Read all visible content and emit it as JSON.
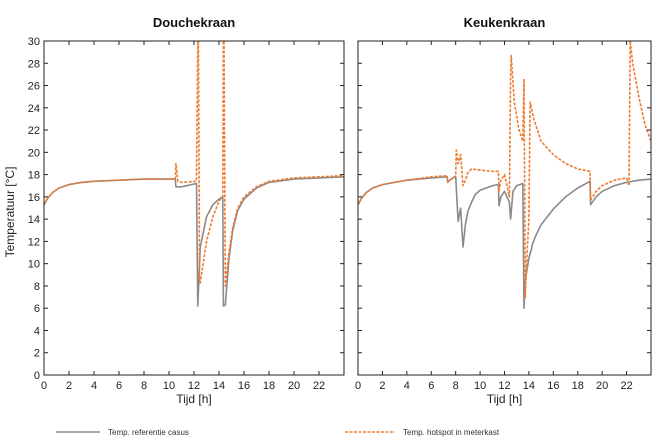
{
  "chart_data": {
    "type": "line",
    "ylabel": "Temperatuur [°C]",
    "colors": {
      "reference": "#8a8a8a",
      "hotspot": "#f07a30",
      "axis": "#222222"
    },
    "legend": {
      "placement": "bottom",
      "entries": [
        {
          "label": "Temp. referentie casus",
          "style": "solid",
          "color": "#8a8a8a"
        },
        {
          "label": "Temp. hotspot in meterkast",
          "style": "dashed",
          "color": "#f07a30"
        }
      ]
    },
    "panels": [
      {
        "title": "Douchekraan",
        "xlabel": "Tijd [h]",
        "xlim": [
          0,
          24
        ],
        "ylim": [
          0,
          30
        ],
        "xticks": [
          0,
          2,
          4,
          6,
          8,
          10,
          12,
          14,
          16,
          18,
          20,
          22
        ],
        "yticks": [
          0,
          2,
          4,
          6,
          8,
          10,
          12,
          14,
          16,
          18,
          20,
          22,
          24,
          26,
          28,
          30
        ],
        "series": [
          {
            "key": "reference",
            "x": [
              0,
              0.3,
              0.7,
              1.2,
              2,
              3,
              4,
              6,
              8,
              10.5,
              10.55,
              11,
              12.2,
              12.3,
              12.5,
              13,
              13.5,
              14,
              14.3,
              14.35,
              14.5,
              14.8,
              15.1,
              15.5,
              16,
              17,
              18,
              20,
              22,
              24
            ],
            "y": [
              15.3,
              15.9,
              16.4,
              16.8,
              17.1,
              17.3,
              17.4,
              17.5,
              17.6,
              17.6,
              16.9,
              16.9,
              17.2,
              6.2,
              11.5,
              14.2,
              15.3,
              15.8,
              16.0,
              6.2,
              6.3,
              10.5,
              13.0,
              14.8,
              15.8,
              16.8,
              17.3,
              17.6,
              17.7,
              17.8
            ]
          },
          {
            "key": "hotspot",
            "x": [
              0,
              0.3,
              0.7,
              1.2,
              2,
              3,
              4,
              6,
              8,
              10.5,
              10.55,
              10.7,
              11,
              12.2,
              12.3,
              12.35,
              12.45,
              12.5,
              13,
              13.5,
              14,
              14.3,
              14.35,
              14.4,
              14.5,
              14.8,
              15.1,
              15.5,
              16,
              17,
              18,
              20,
              22,
              24
            ],
            "y": [
              15.3,
              15.9,
              16.4,
              16.8,
              17.1,
              17.3,
              17.4,
              17.5,
              17.6,
              17.6,
              19.0,
              17.4,
              17.3,
              17.4,
              30,
              30,
              8.2,
              8.3,
              12.0,
              14.2,
              15.6,
              16.1,
              30,
              30,
              8.0,
              11.0,
              13.3,
              15.0,
              16.0,
              16.9,
              17.4,
              17.7,
              17.8,
              17.9
            ]
          }
        ]
      },
      {
        "title": "Keukenkraan",
        "xlabel": "Tijd [h]",
        "xlim": [
          0,
          24
        ],
        "ylim": [
          0,
          30
        ],
        "xticks": [
          0,
          2,
          4,
          6,
          8,
          10,
          12,
          14,
          16,
          18,
          20,
          22
        ],
        "yticks": [
          0,
          2,
          4,
          6,
          8,
          10,
          12,
          14,
          16,
          18,
          20,
          22,
          24,
          26,
          28,
          30
        ],
        "series": [
          {
            "key": "reference",
            "x": [
              0,
              0.3,
              0.7,
              1.2,
              2,
              3,
              4,
              6,
              7.3,
              7.35,
              7.5,
              7.8,
              8.0,
              8.2,
              8.4,
              8.6,
              8.8,
              9.0,
              9.3,
              9.6,
              10,
              11,
              11.5,
              11.55,
              11.7,
              12.0,
              12.4,
              12.5,
              12.7,
              13.0,
              13.5,
              13.6,
              13.7,
              14.0,
              14.2,
              14.3,
              14.6,
              15,
              16,
              17,
              18,
              19,
              19.05,
              19.5,
              20,
              21,
              22,
              23,
              24
            ],
            "y": [
              15.3,
              15.9,
              16.4,
              16.8,
              17.1,
              17.3,
              17.5,
              17.7,
              17.8,
              17.3,
              17.5,
              17.7,
              17.8,
              13.8,
              15.0,
              11.5,
              13.5,
              14.7,
              15.5,
              16.2,
              16.6,
              17.0,
              17.1,
              15.2,
              16.0,
              16.5,
              15.5,
              14.0,
              16.5,
              17.0,
              17.2,
              6.0,
              8.5,
              10.5,
              11.3,
              11.8,
              12.6,
              13.5,
              14.9,
              16.0,
              16.8,
              17.4,
              15.3,
              16.0,
              16.5,
              17.0,
              17.3,
              17.5,
              17.6
            ]
          },
          {
            "key": "hotspot",
            "x": [
              0,
              0.3,
              0.7,
              1.2,
              2,
              3,
              4,
              6,
              7.3,
              7.35,
              7.5,
              7.8,
              8.0,
              8.05,
              8.2,
              8.4,
              8.6,
              8.8,
              9.0,
              9.3,
              10,
              11,
              11.5,
              11.55,
              11.7,
              12.0,
              12.4,
              12.5,
              12.55,
              12.8,
              13.2,
              13.5,
              13.6,
              13.7,
              13.8,
              14.0,
              14.1,
              14.4,
              15,
              16,
              17,
              18,
              19,
              19.05,
              19.5,
              20,
              21,
              22,
              22.2,
              22.3,
              22.5,
              23,
              23.5,
              24
            ],
            "y": [
              15.3,
              15.9,
              16.4,
              16.8,
              17.1,
              17.3,
              17.5,
              17.8,
              17.9,
              17.3,
              17.5,
              17.7,
              17.9,
              20.2,
              19.0,
              19.8,
              17.0,
              17.5,
              18.2,
              18.5,
              18.4,
              18.3,
              18.3,
              16.5,
              17.5,
              18.0,
              16.0,
              27.0,
              28.7,
              24.5,
              22.0,
              21.0,
              26.6,
              7.0,
              10.0,
              14.0,
              24.5,
              23.0,
              21.0,
              19.8,
              19.0,
              18.5,
              18.3,
              15.7,
              16.5,
              17.0,
              17.5,
              17.7,
              17.0,
              30,
              28.0,
              25.0,
              22.5,
              21.0
            ]
          }
        ]
      }
    ]
  }
}
